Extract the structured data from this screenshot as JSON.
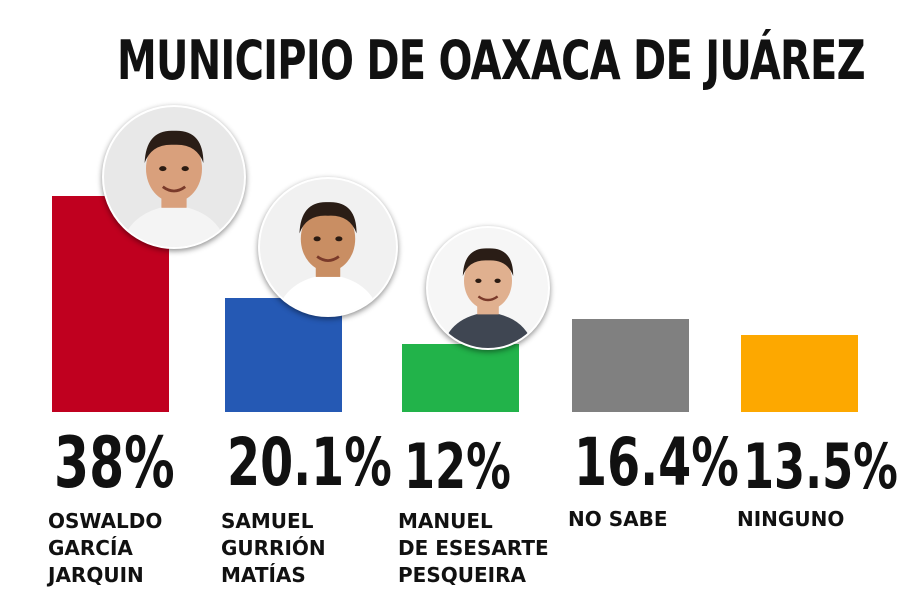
{
  "chart_data": {
    "type": "bar",
    "title": "MUNICIPIO DE OAXACA DE JUÁREZ",
    "categories": [
      "OSWALDO GARCÍA JARQUIN",
      "SAMUEL GURRIÓN MATÍAS",
      "MANUEL DE ESESARTE PESQUEIRA",
      "NO SABE",
      "NINGUNO"
    ],
    "values": [
      38,
      20.1,
      12,
      16.4,
      13.5
    ],
    "data_labels": [
      "38%",
      "20.1%",
      "12%",
      "16.4%",
      "13.5%"
    ],
    "name_lines": [
      [
        "OSWALDO",
        "GARCÍA",
        "JARQUIN"
      ],
      [
        "SAMUEL",
        "GURRIÓN",
        "MATÍAS"
      ],
      [
        "MANUEL",
        "DE ESESARTE",
        "PESQUEIRA"
      ],
      [
        "NO SABE"
      ],
      [
        "NINGUNO"
      ]
    ],
    "colors": [
      "#c0001f",
      "#2559b4",
      "#22b34a",
      "#808080",
      "#fda800"
    ],
    "photos": [
      "candidate-photo",
      "candidate-photo",
      "candidate-photo",
      null,
      null
    ],
    "ylim": [
      0,
      40
    ],
    "grid": false,
    "legend": "none"
  }
}
